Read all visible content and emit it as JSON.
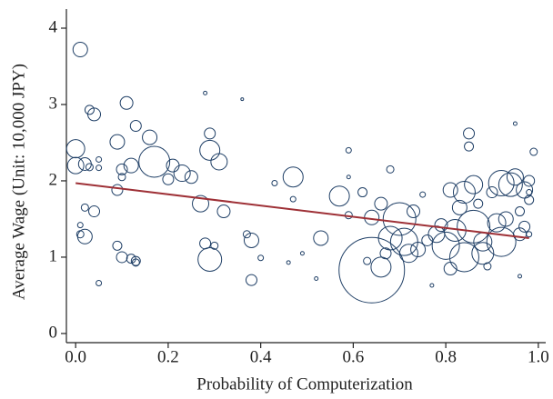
{
  "chart_data": {
    "type": "scatter",
    "xlabel": "Probability of Computerization",
    "ylabel": "Average Wage (Unit: 10,000 JPY)",
    "xlim": [
      -0.02,
      1.016
    ],
    "ylim": [
      -0.12,
      4.25
    ],
    "xticks": [
      {
        "value": 0,
        "label": "0.0"
      },
      0.2,
      0.4,
      0.6,
      0.8,
      {
        "value": 1,
        "label": "1.0"
      }
    ],
    "yticks": [
      0,
      1,
      2,
      3,
      4
    ],
    "grid": false,
    "series": [
      {
        "color": "#1f3f66",
        "x": [
          0.01,
          0.0,
          0.0,
          0.02,
          0.03,
          0.04,
          0.03,
          0.05,
          0.05,
          0.01,
          0.01,
          0.02,
          0.04,
          0.02,
          0.05,
          0.09,
          0.1,
          0.12,
          0.13,
          0.13,
          0.09,
          0.09,
          0.1,
          0.1,
          0.12,
          0.11,
          0.13,
          0.16,
          0.17,
          0.2,
          0.21,
          0.23,
          0.25,
          0.27,
          0.29,
          0.29,
          0.31,
          0.32,
          0.28,
          0.28,
          0.3,
          0.29,
          0.36,
          0.37,
          0.38,
          0.38,
          0.4,
          0.43,
          0.46,
          0.47,
          0.47,
          0.49,
          0.52,
          0.53,
          0.57,
          0.59,
          0.59,
          0.59,
          0.62,
          0.64,
          0.63,
          0.64,
          0.66,
          0.66,
          0.67,
          0.68,
          0.68,
          0.7,
          0.71,
          0.72,
          0.73,
          0.74,
          0.75,
          0.76,
          0.77,
          0.78,
          0.79,
          0.8,
          0.81,
          0.81,
          0.82,
          0.83,
          0.84,
          0.84,
          0.85,
          0.85,
          0.86,
          0.86,
          0.87,
          0.88,
          0.88,
          0.89,
          0.9,
          0.91,
          0.92,
          0.92,
          0.93,
          0.94,
          0.95,
          0.95,
          0.96,
          0.96,
          0.97,
          0.97,
          0.98,
          0.98,
          0.98,
          0.99,
          0.96,
          0.98
        ],
        "values": [
          3.72,
          2.42,
          2.2,
          2.22,
          2.93,
          2.87,
          2.18,
          2.17,
          2.28,
          1.42,
          1.3,
          1.27,
          1.6,
          1.65,
          0.66,
          1.15,
          1.0,
          0.98,
          0.95,
          0.93,
          1.88,
          2.51,
          2.05,
          2.15,
          2.2,
          3.02,
          2.72,
          2.57,
          2.25,
          2.02,
          2.2,
          2.1,
          2.05,
          1.7,
          2.4,
          2.62,
          2.25,
          1.6,
          3.15,
          1.18,
          1.15,
          0.97,
          3.07,
          1.3,
          1.22,
          0.7,
          0.99,
          1.97,
          0.93,
          2.05,
          1.76,
          1.05,
          0.72,
          1.25,
          1.8,
          2.4,
          2.05,
          1.55,
          1.85,
          0.83,
          0.95,
          1.52,
          1.7,
          0.87,
          1.05,
          2.15,
          1.25,
          1.5,
          1.2,
          1.05,
          1.6,
          1.1,
          1.82,
          1.22,
          0.63,
          1.3,
          1.42,
          1.15,
          0.85,
          1.88,
          1.35,
          1.65,
          1.85,
          1.0,
          2.62,
          2.45,
          1.95,
          1.4,
          1.7,
          1.2,
          1.05,
          0.88,
          1.85,
          1.45,
          1.97,
          1.2,
          1.5,
          1.95,
          2.05,
          2.75,
          1.6,
          1.3,
          1.88,
          1.4,
          1.75,
          1.3,
          2.0,
          2.38,
          0.75,
          1.85
        ],
        "sizes": [
          8,
          10,
          9,
          7,
          5,
          7,
          4,
          3,
          3,
          3,
          4,
          8,
          6,
          4,
          3,
          5,
          6,
          5,
          5,
          4,
          6,
          8,
          4,
          6,
          8,
          7,
          6,
          8,
          17,
          6,
          7,
          9,
          7,
          9,
          11,
          6,
          9,
          7,
          2,
          6,
          4,
          13,
          1.5,
          4,
          8,
          6,
          3,
          3,
          2,
          11,
          3,
          2,
          2,
          8,
          11,
          3,
          2,
          4,
          5,
          36,
          4,
          8,
          7,
          11,
          6,
          4,
          13,
          18,
          15,
          10,
          7,
          8,
          3,
          6,
          2,
          9,
          7,
          15,
          7,
          8,
          12,
          8,
          12,
          16,
          6,
          5,
          10,
          18,
          5,
          10,
          12,
          4,
          6,
          10,
          14,
          16,
          8,
          13,
          9,
          2,
          5,
          7,
          9,
          6,
          5,
          3,
          6,
          4,
          2,
          3
        ]
      }
    ],
    "fit": {
      "x": [
        0,
        0.98
      ],
      "values": [
        1.97,
        1.25
      ],
      "color": "#9e3036"
    }
  }
}
